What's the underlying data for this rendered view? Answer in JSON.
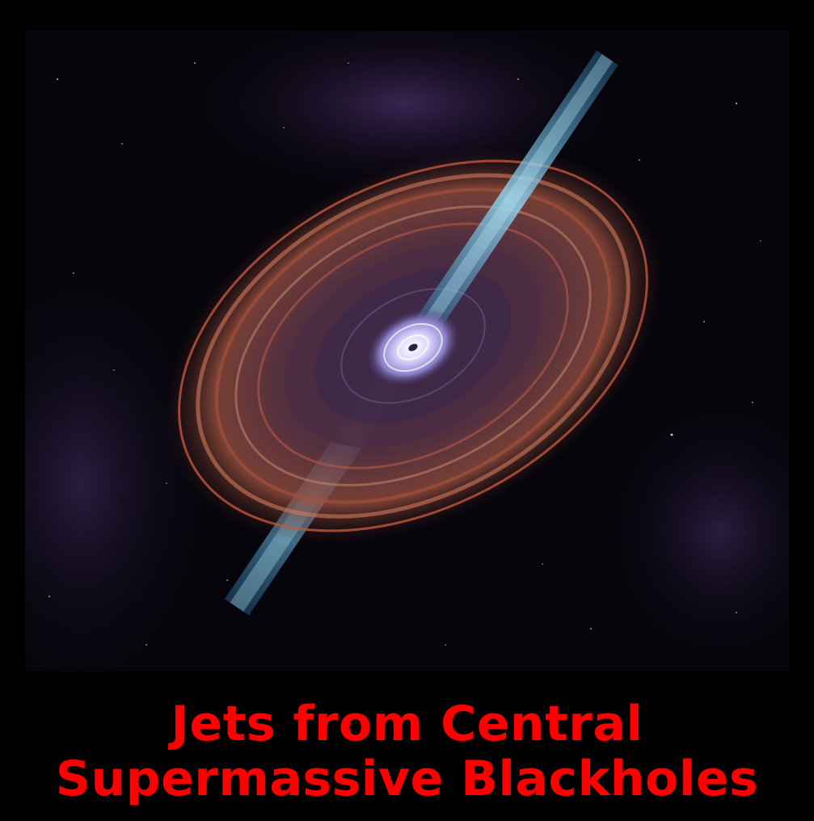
{
  "caption": {
    "line1": "Jets from Central",
    "line2": "Supermassive Blackholes"
  },
  "colors": {
    "background": "#000000",
    "caption_text": "#ff0000",
    "disk_outer": "#b0533e",
    "disk_inner": "#5a3a55",
    "core": "#e8e4ff",
    "jet": "#6fb6d8",
    "nebula": "#5b3a7a"
  },
  "illustration": {
    "subject": "accretion-disk-with-relativistic-jets"
  }
}
